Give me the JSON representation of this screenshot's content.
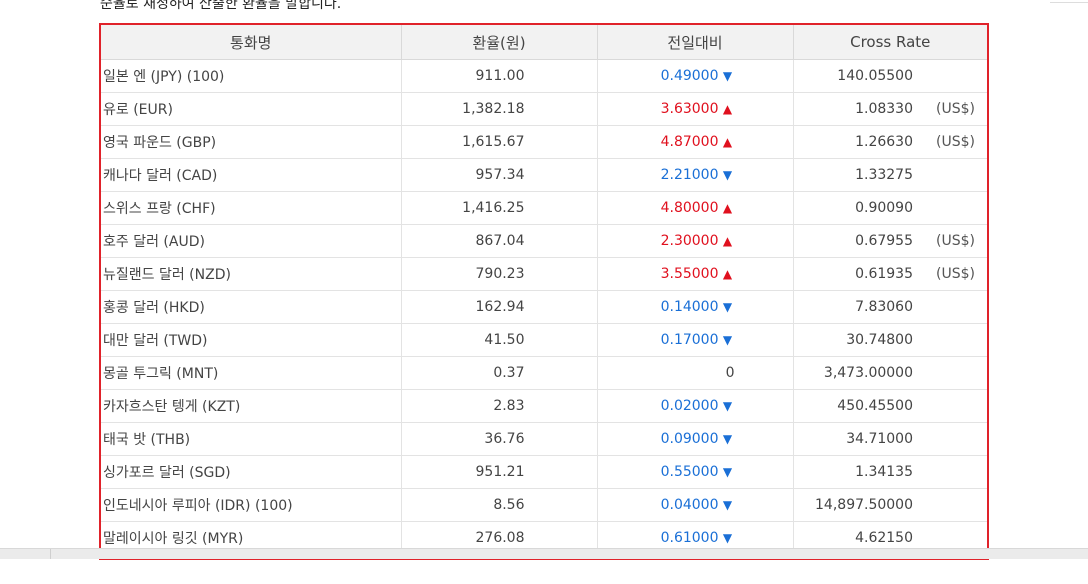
{
  "intro_text": "순율로 재정하여 산출한 환율을 말합니다.",
  "table": {
    "headers": [
      "통화명",
      "환율(원)",
      "전일대비",
      "Cross Rate"
    ],
    "rows": [
      {
        "name": "일본 엔 (JPY) (100)",
        "rate": "911.00",
        "change": "0.49000",
        "dir": "down",
        "cross": "140.05500",
        "unit": ""
      },
      {
        "name": "유로 (EUR)",
        "rate": "1,382.18",
        "change": "3.63000",
        "dir": "up",
        "cross": "1.08330",
        "unit": "(US$)"
      },
      {
        "name": "영국 파운드 (GBP)",
        "rate": "1,615.67",
        "change": "4.87000",
        "dir": "up",
        "cross": "1.26630",
        "unit": "(US$)"
      },
      {
        "name": "캐나다 달러 (CAD)",
        "rate": "957.34",
        "change": "2.21000",
        "dir": "down",
        "cross": "1.33275",
        "unit": ""
      },
      {
        "name": "스위스 프랑 (CHF)",
        "rate": "1,416.25",
        "change": "4.80000",
        "dir": "up",
        "cross": "0.90090",
        "unit": ""
      },
      {
        "name": "호주 달러 (AUD)",
        "rate": "867.04",
        "change": "2.30000",
        "dir": "up",
        "cross": "0.67955",
        "unit": "(US$)"
      },
      {
        "name": "뉴질랜드 달러 (NZD)",
        "rate": "790.23",
        "change": "3.55000",
        "dir": "up",
        "cross": "0.61935",
        "unit": "(US$)"
      },
      {
        "name": "홍콩 달러 (HKD)",
        "rate": "162.94",
        "change": "0.14000",
        "dir": "down",
        "cross": "7.83060",
        "unit": ""
      },
      {
        "name": "대만 달러 (TWD)",
        "rate": "41.50",
        "change": "0.17000",
        "dir": "down",
        "cross": "30.74800",
        "unit": ""
      },
      {
        "name": "몽골 투그릭 (MNT)",
        "rate": "0.37",
        "change": "0",
        "dir": "none",
        "cross": "3,473.00000",
        "unit": ""
      },
      {
        "name": "카자흐스탄 텡게 (KZT)",
        "rate": "2.83",
        "change": "0.02000",
        "dir": "down",
        "cross": "450.45500",
        "unit": ""
      },
      {
        "name": "태국 밧 (THB)",
        "rate": "36.76",
        "change": "0.09000",
        "dir": "down",
        "cross": "34.71000",
        "unit": ""
      },
      {
        "name": "싱가포르 달러 (SGD)",
        "rate": "951.21",
        "change": "0.55000",
        "dir": "down",
        "cross": "1.34135",
        "unit": ""
      },
      {
        "name": "인도네시아 루피아 (IDR) (100)",
        "rate": "8.56",
        "change": "0.04000",
        "dir": "down",
        "cross": "14,897.50000",
        "unit": ""
      },
      {
        "name": "말레이시아 링깃 (MYR)",
        "rate": "276.08",
        "change": "0.61000",
        "dir": "down",
        "cross": "4.62150",
        "unit": ""
      }
    ]
  },
  "colors": {
    "up": "#e0101e",
    "down": "#1a6fd6",
    "highlight_border": "#e0222a"
  },
  "icons": {
    "up": "triangle-up-icon",
    "down": "triangle-down-icon"
  }
}
